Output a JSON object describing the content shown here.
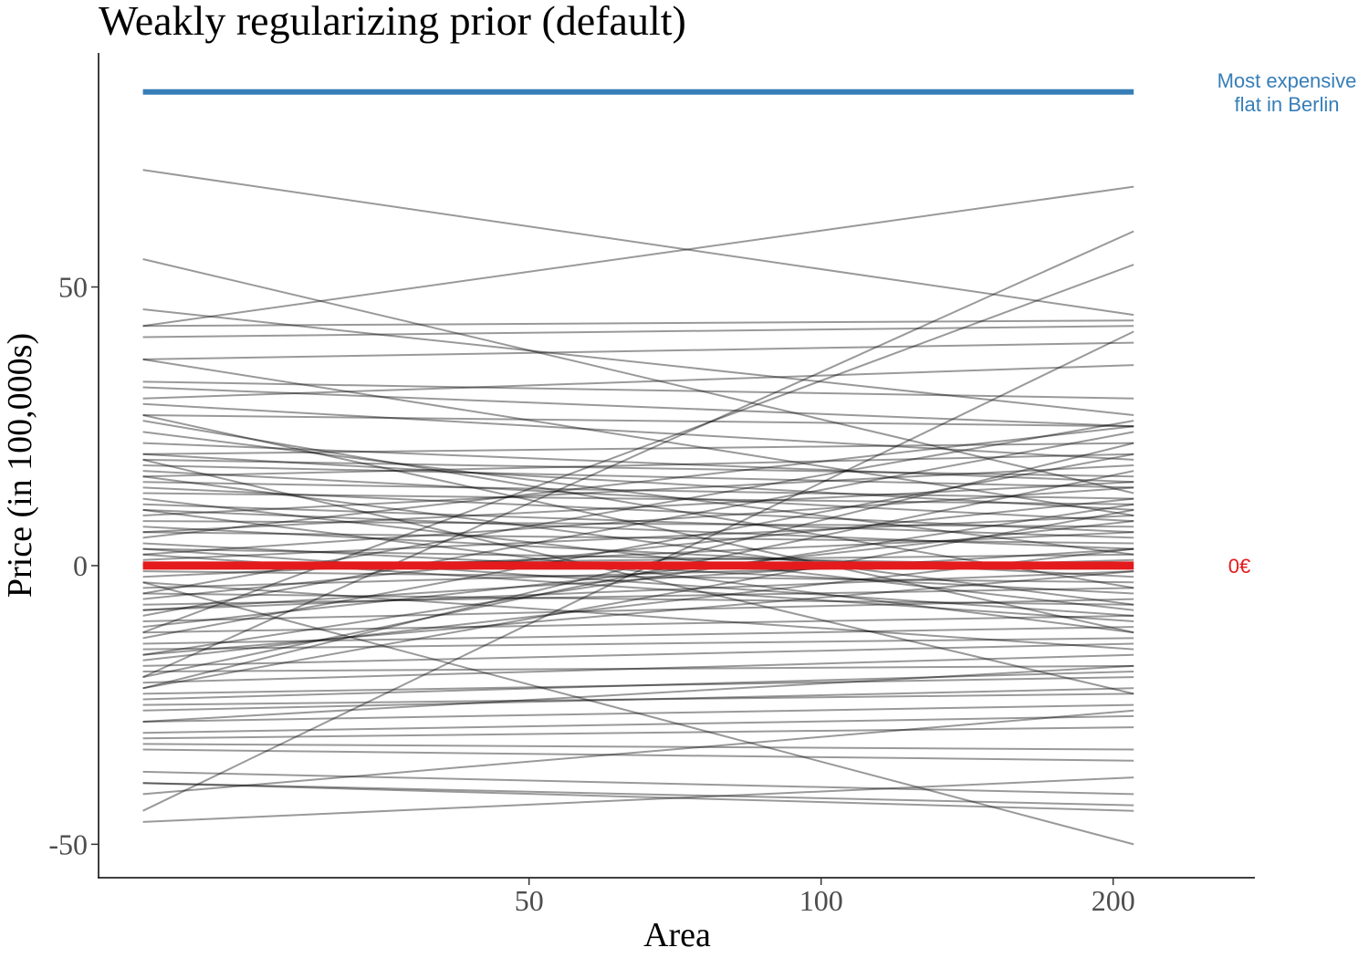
{
  "chart_data": {
    "type": "line",
    "title": "Weakly regularizing prior (default)",
    "xlabel": "Area",
    "ylabel": "Price (in 100,000s)",
    "x_scale": "log",
    "x_range": [
      20,
      210
    ],
    "xlim": [
      18,
      280
    ],
    "ylim": [
      -56,
      92
    ],
    "x_ticks": [
      50,
      100,
      200
    ],
    "x_tick_labels": [
      "50",
      "100",
      "200"
    ],
    "y_ticks": [
      -50,
      0,
      50
    ],
    "y_tick_labels": [
      "-50",
      "0",
      "50"
    ],
    "grid": false,
    "legend": "none",
    "colors": {
      "prior_lines": "#000000",
      "zero_line": "#e41a1c",
      "max_line": "#377eb8"
    },
    "reference_lines": [
      {
        "y": 85,
        "label_lines": [
          "Most expensive",
          "flat in Berlin"
        ],
        "color": "#377eb8"
      },
      {
        "y": 0,
        "label_lines": [
          "0€"
        ],
        "color": "#e41a1c"
      }
    ],
    "prior_lines": [
      [
        71,
        45
      ],
      [
        55,
        13
      ],
      [
        46,
        27
      ],
      [
        43,
        68
      ],
      [
        43,
        44
      ],
      [
        41,
        43
      ],
      [
        37,
        40
      ],
      [
        37,
        9
      ],
      [
        33,
        30
      ],
      [
        32,
        25
      ],
      [
        30,
        36
      ],
      [
        29,
        19
      ],
      [
        27,
        25
      ],
      [
        27,
        -12
      ],
      [
        24,
        2
      ],
      [
        22,
        15
      ],
      [
        20,
        10
      ],
      [
        20,
        22
      ],
      [
        19,
        16
      ],
      [
        18,
        14
      ],
      [
        17,
        8
      ],
      [
        16,
        20
      ],
      [
        15,
        12
      ],
      [
        14,
        6
      ],
      [
        13,
        11
      ],
      [
        12,
        -8
      ],
      [
        11,
        5
      ],
      [
        10,
        3
      ],
      [
        9,
        18
      ],
      [
        8,
        7
      ],
      [
        7,
        -2
      ],
      [
        6,
        4
      ],
      [
        5,
        25
      ],
      [
        4,
        -5
      ],
      [
        3,
        0
      ],
      [
        2,
        -10
      ],
      [
        2,
        14
      ],
      [
        1,
        9
      ],
      [
        0,
        2
      ],
      [
        -1,
        -3
      ],
      [
        -2,
        6
      ],
      [
        -3,
        -15
      ],
      [
        -4,
        1
      ],
      [
        -5,
        -7
      ],
      [
        -5,
        26
      ],
      [
        -6,
        12
      ],
      [
        -7,
        -4
      ],
      [
        -8,
        -1
      ],
      [
        -9,
        24
      ],
      [
        -10,
        -6
      ],
      [
        -11,
        8
      ],
      [
        -12,
        -9
      ],
      [
        -13,
        20
      ],
      [
        -14,
        -11
      ],
      [
        -15,
        -13
      ],
      [
        -16,
        11
      ],
      [
        -17,
        3
      ],
      [
        -18,
        -14
      ],
      [
        -19,
        -18
      ],
      [
        -20,
        17
      ],
      [
        -21,
        -16
      ],
      [
        -22,
        22
      ],
      [
        -23,
        -20
      ],
      [
        -24,
        -19
      ],
      [
        -25,
        -23
      ],
      [
        -26,
        -22
      ],
      [
        -28,
        -25
      ],
      [
        -28,
        -18
      ],
      [
        -30,
        -27
      ],
      [
        -31,
        -29
      ],
      [
        -32,
        -33
      ],
      [
        -33,
        -35
      ],
      [
        -37,
        -41
      ],
      [
        -39,
        -44
      ],
      [
        -39,
        -43
      ],
      [
        -41,
        -26
      ],
      [
        -44,
        42
      ],
      [
        -46,
        -38
      ],
      [
        -12,
        54
      ],
      [
        -20,
        60
      ],
      [
        -3,
        -50
      ],
      [
        6,
        15
      ],
      [
        19,
        -23
      ],
      [
        10,
        -12
      ],
      [
        16,
        -7
      ],
      [
        3,
        -9
      ],
      [
        -8,
        3
      ],
      [
        -16,
        -1
      ],
      [
        26,
        -4
      ],
      [
        -22,
        10
      ]
    ]
  }
}
